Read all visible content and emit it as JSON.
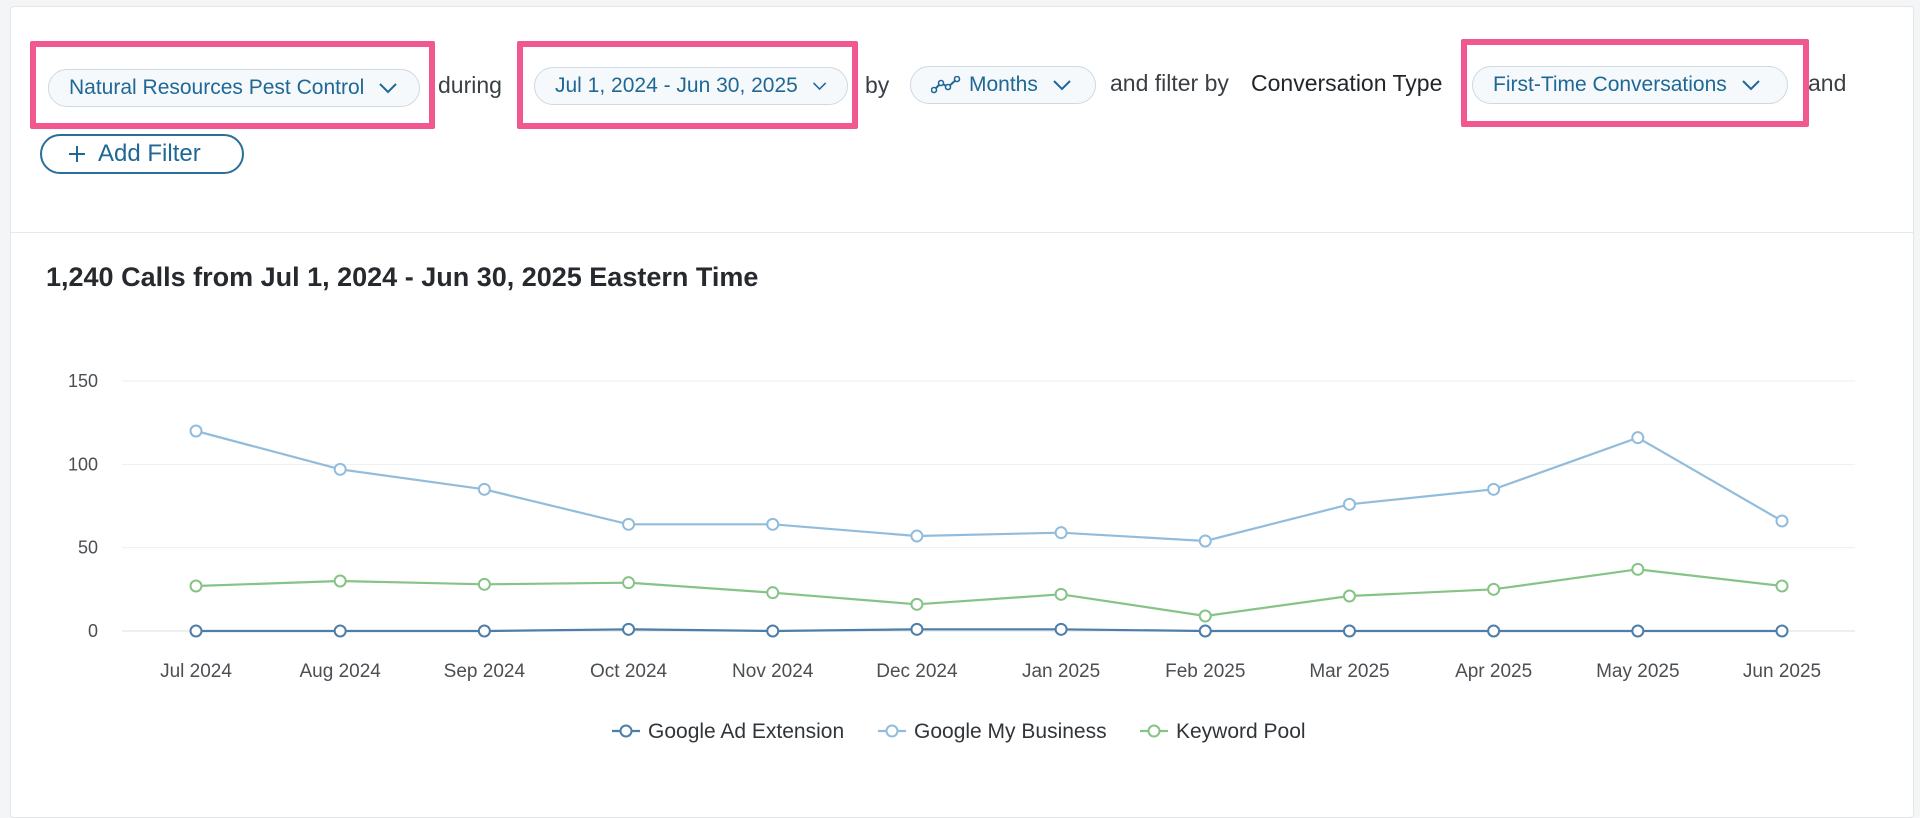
{
  "filters": {
    "account": "Natural Resources Pest Control",
    "during": "during",
    "date_range": "Jul 1, 2024 - Jun 30, 2025",
    "by": "by",
    "granularity": "Months",
    "filter_by": "and filter by",
    "filter_field": "Conversation Type",
    "filter_value": "First-Time Conversations",
    "and": "and",
    "add_filter": "Add Filter"
  },
  "colors": {
    "highlight": "#f0588f",
    "link": "#1f6896"
  },
  "chart_data": {
    "type": "line",
    "title": "1,240 Calls from Jul 1, 2024 - Jun 30, 2025 Eastern Time",
    "categories": [
      "Jul 2024",
      "Aug 2024",
      "Sep 2024",
      "Oct 2024",
      "Nov 2024",
      "Dec 2024",
      "Jan 2025",
      "Feb 2025",
      "Mar 2025",
      "Apr 2025",
      "May 2025",
      "Jun 2025"
    ],
    "yticks": [
      0,
      50,
      100,
      150
    ],
    "ylim": [
      0,
      150
    ],
    "grid": true,
    "legend": "bottom",
    "series": [
      {
        "name": "Google Ad Extension",
        "color": "#4d7ea8",
        "values": [
          0,
          0,
          0,
          1,
          0,
          1,
          1,
          0,
          0,
          0,
          0,
          0
        ]
      },
      {
        "name": "Google My Business",
        "color": "#92bcdc",
        "values": [
          120,
          97,
          85,
          64,
          64,
          57,
          59,
          54,
          76,
          85,
          116,
          66
        ]
      },
      {
        "name": "Keyword Pool",
        "color": "#86c386",
        "values": [
          27,
          30,
          28,
          29,
          23,
          16,
          22,
          9,
          21,
          25,
          37,
          27
        ]
      }
    ]
  }
}
